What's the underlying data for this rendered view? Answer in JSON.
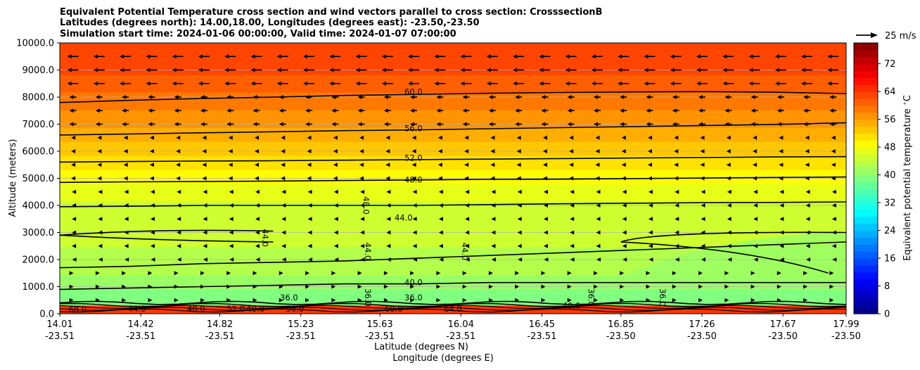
{
  "chart_data": {
    "type": "contour cross-section with wind vectors",
    "title_lines": [
      "Equivalent Potential Temperature cross section and wind vectors parallel to cross section: CrosssectionB",
      "Latitudes (degrees north): 14.00,18.00, Longitudes (degrees east): -23.50,-23.50",
      "Simulation start time: 2024-01-06 00:00:00, Valid time: 2024-01-07 07:00:00"
    ],
    "xlabel_lat": "Latitude (degrees N)",
    "xlabel_lon": "Longitude (degrees E)",
    "ylabel": "Altitude (meters)",
    "x_ticks": [
      {
        "lat": "14.01",
        "lon": "-23.51",
        "pos": 14.01
      },
      {
        "lat": "14.42",
        "lon": "-23.51",
        "pos": 14.42
      },
      {
        "lat": "14.82",
        "lon": "-23.51",
        "pos": 14.82
      },
      {
        "lat": "15.23",
        "lon": "-23.51",
        "pos": 15.23
      },
      {
        "lat": "15.63",
        "lon": "-23.51",
        "pos": 15.63
      },
      {
        "lat": "16.04",
        "lon": "-23.51",
        "pos": 16.04
      },
      {
        "lat": "16.45",
        "lon": "-23.51",
        "pos": 16.45
      },
      {
        "lat": "16.85",
        "lon": "-23.50",
        "pos": 16.85
      },
      {
        "lat": "17.26",
        "lon": "-23.50",
        "pos": 17.26
      },
      {
        "lat": "17.67",
        "lon": "-23.50",
        "pos": 17.67
      },
      {
        "lat": "17.99",
        "lon": "-23.50",
        "pos": 17.99
      }
    ],
    "xlim": [
      14.01,
      17.99
    ],
    "y_ticks": [
      "0.0",
      "1000.0",
      "2000.0",
      "3000.0",
      "4000.0",
      "5000.0",
      "6000.0",
      "7000.0",
      "8000.0",
      "9000.0",
      "10000.0"
    ],
    "ylim": [
      0,
      10000
    ],
    "grid": "horizontal",
    "quiver_key": "25 m/s",
    "colorbar": {
      "label": "Equivalent potential temperature $^\\circ$C",
      "ticks": [
        "0",
        "8",
        "16",
        "24",
        "32",
        "40",
        "48",
        "56",
        "64",
        "72"
      ],
      "range": [
        0,
        78
      ],
      "cmap": "jet"
    },
    "contours": [
      {
        "level": "40.0",
        "y": [
          900,
          950,
          1000,
          1050,
          1100,
          1100,
          1150,
          1150,
          1150,
          1150,
          1150,
          1150
        ]
      },
      {
        "level": "44.0",
        "y": [
          1700,
          1750,
          1850,
          1900,
          1950,
          2050,
          2150,
          2250,
          2350,
          2450,
          2550,
          2650
        ]
      },
      {
        "level": "44.0",
        "y": [
          3950,
          3970,
          4000,
          4000,
          4000,
          4000,
          4030,
          4060,
          4080,
          4100,
          4110,
          4130
        ]
      },
      {
        "level": "48.0",
        "y": [
          4850,
          4870,
          4880,
          4900,
          4920,
          4940,
          4960,
          4970,
          4990,
          5010,
          5030,
          5050
        ]
      },
      {
        "level": "52.0",
        "y": [
          5600,
          5620,
          5640,
          5650,
          5670,
          5690,
          5710,
          5730,
          5750,
          5770,
          5790,
          5800
        ]
      },
      {
        "level": "56.0",
        "y": [
          6600,
          6640,
          6680,
          6720,
          6760,
          6790,
          6830,
          6870,
          6910,
          6950,
          6990,
          7050
        ]
      },
      {
        "level": "60.0",
        "y": [
          7800,
          7880,
          7950,
          8000,
          8060,
          8100,
          8140,
          8170,
          8190,
          8200,
          8180,
          8130
        ]
      }
    ],
    "contour_labels": [
      "60.0",
      "56.0",
      "52.0",
      "48.0",
      "44.0",
      "48.0",
      "44.0",
      "44.0",
      "44.0",
      "40.0",
      "36.0",
      "36.0",
      "36.0",
      "36.0",
      "36.0",
      "40.0",
      "40.0",
      "44.0",
      "48.0",
      "52.0",
      "56.0",
      "60.0",
      "64.0",
      "68.0"
    ]
  }
}
